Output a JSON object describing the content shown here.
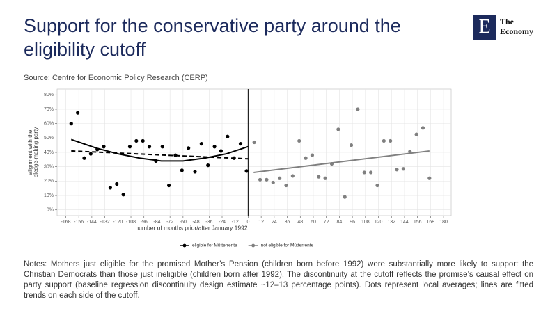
{
  "header": {
    "title": "Support for the conservative party around the eligibility cutoff",
    "logo": {
      "mark": "E",
      "lines": [
        "The",
        "Economy"
      ]
    }
  },
  "source": "Source: Centre for Economic Policy Research (CERP)",
  "chart_data": {
    "type": "scatter",
    "xlabel": "number of months prior/after January 1992",
    "ylabel": [
      "alignment with the",
      "pledge-making party"
    ],
    "xlim": [
      -176,
      187
    ],
    "ylim": [
      -4,
      84
    ],
    "xticks": [
      -168,
      -156,
      -144,
      -132,
      -120,
      -108,
      -96,
      -84,
      -72,
      -60,
      -48,
      -36,
      -24,
      -12,
      0,
      12,
      24,
      36,
      48,
      60,
      72,
      84,
      96,
      108,
      120,
      132,
      144,
      156,
      168,
      180
    ],
    "yticks": [
      {
        "value": 0,
        "label": "0%"
      },
      {
        "value": 10,
        "label": "10%"
      },
      {
        "value": 20,
        "label": "20%"
      },
      {
        "value": 30,
        "label": "30%"
      },
      {
        "value": 40,
        "label": "40%"
      },
      {
        "value": 50,
        "label": "50%"
      },
      {
        "value": 60,
        "label": "60%"
      },
      {
        "value": 70,
        "label": "70%"
      },
      {
        "value": 80,
        "label": "80%"
      }
    ],
    "grid": true,
    "cutoff": 0,
    "series": [
      {
        "name": "eligible for Mütterrente",
        "color": "#000000",
        "x": [
          -163,
          -157,
          -151,
          -145,
          -139,
          -133,
          -127,
          -121,
          -115,
          -109,
          -103,
          -97,
          -91,
          -85,
          -79,
          -73,
          -67,
          -61,
          -55,
          -49,
          -43,
          -37,
          -31,
          -25,
          -19,
          -13,
          -7,
          -1.5
        ],
        "values": [
          60,
          67.5,
          36,
          39,
          42,
          44,
          15.4,
          18,
          10.6,
          44,
          48,
          48,
          44,
          34,
          44,
          17,
          38,
          27.5,
          43,
          26.5,
          46,
          31,
          44,
          41,
          51,
          36,
          46,
          27
        ],
        "fits": [
          {
            "x": [
              -163,
              -140,
              -120,
              -100,
              -80,
              -60,
              -40,
              -20,
              0
            ],
            "values": [
              49,
              43,
              39,
              36,
              34,
              34,
              36,
              39,
              44
            ],
            "dashed": false
          },
          {
            "x": [
              -163,
              0
            ],
            "values": [
              41,
              35.5
            ],
            "dashed": true
          }
        ]
      },
      {
        "name": "not eligible for Mütterrente",
        "color": "#808080",
        "x": [
          5.6,
          11,
          17,
          23,
          29,
          35,
          41,
          47,
          53,
          59,
          65,
          71,
          77,
          83,
          89,
          95,
          101,
          107,
          113,
          119,
          125,
          131,
          137,
          143,
          149,
          155,
          161,
          167
        ],
        "values": [
          47,
          21,
          21,
          19,
          22,
          17,
          23.6,
          48,
          36,
          38,
          23,
          22,
          32,
          56,
          9,
          45,
          70,
          26,
          26,
          17,
          48,
          48,
          28,
          28.5,
          40.5,
          52.5,
          57,
          22
        ],
        "fits": [
          {
            "x": [
              5,
              167
            ],
            "values": [
              26,
              41
            ],
            "dashed": false
          }
        ]
      }
    ]
  },
  "notes": "Notes: Mothers just eligible for the promised Mother’s Pension (children born before 1992) were substantially more likely to support the Christian Democrats than those just ineligible (children born after 1992). The discontinuity at the cutoff reflects the promise’s causal effect on party support (baseline regression discontinuity design estimate ~12–13 percentage points). Dots represent local averages; lines are fitted trends on each side of the cutoff."
}
